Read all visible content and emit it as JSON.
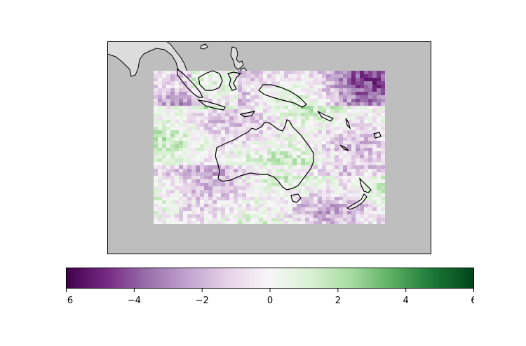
{
  "map": {
    "ocean_color": "#bebebe",
    "land_color": "#dcdcdc",
    "coast_color": "#000000"
  },
  "colorbar": {
    "colormap": "PRGn",
    "vmin": -6,
    "vmax": 6,
    "orientation": "horizontal",
    "ticks": [
      -6,
      -4,
      -2,
      0,
      2,
      4,
      6
    ],
    "tick_labels": [
      "−6",
      "−4",
      "−2",
      "0",
      "2",
      "4",
      "6"
    ],
    "stops": [
      "#40004b",
      "#762a83",
      "#9970ab",
      "#c2a5cf",
      "#e7d4e8",
      "#f7f7f7",
      "#d9f0d3",
      "#a6dba0",
      "#5aae61",
      "#1b7837",
      "#00441b"
    ]
  }
}
